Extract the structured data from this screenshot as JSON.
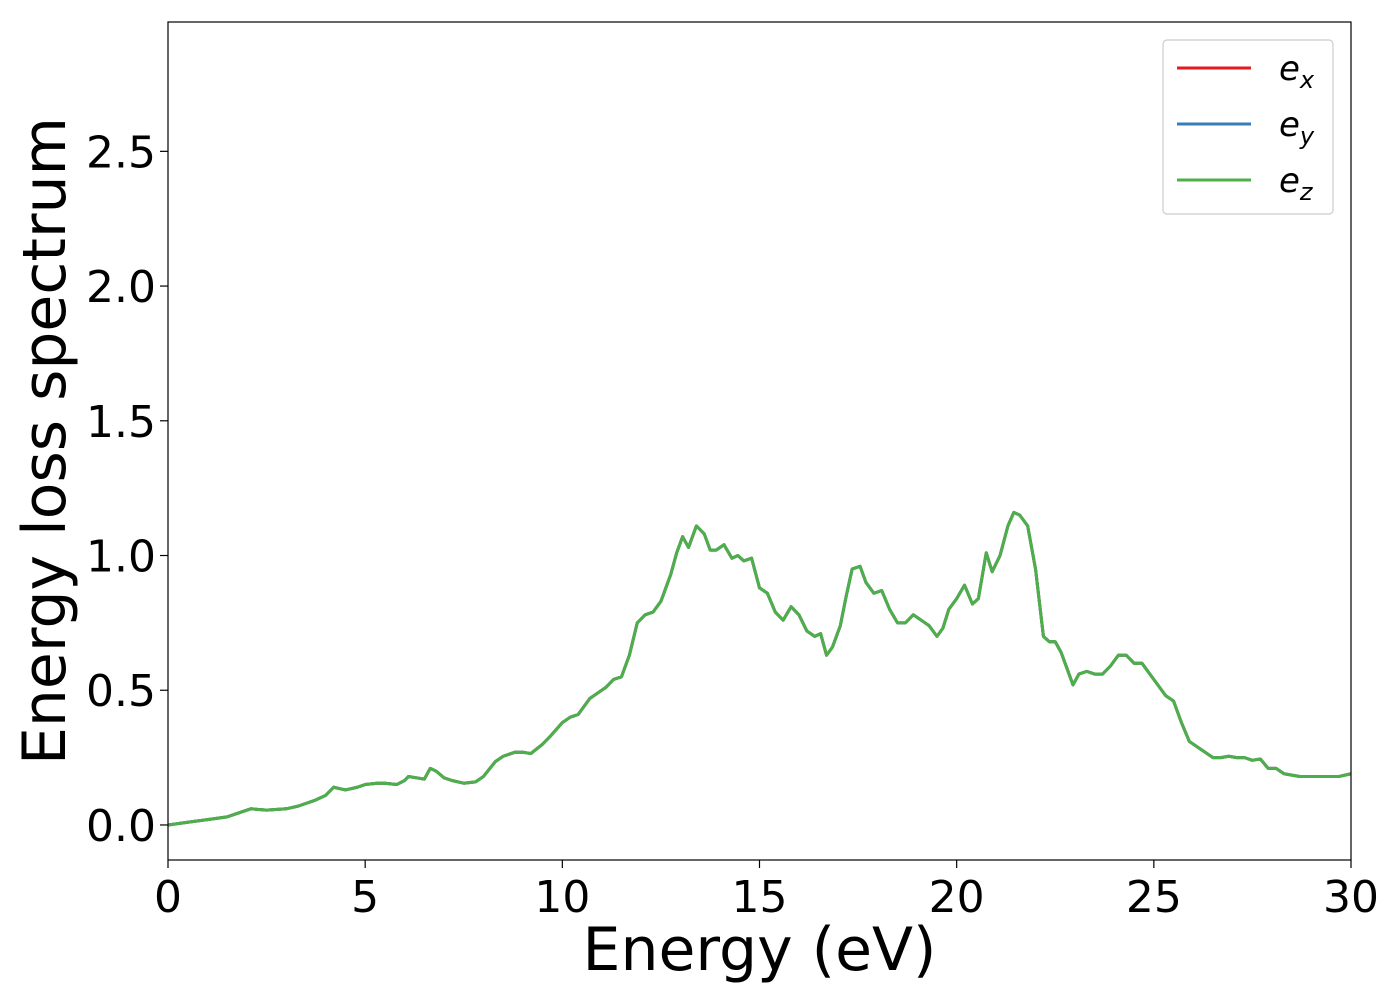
{
  "chart_data": {
    "type": "line",
    "title": "",
    "xlabel": "Energy (eV)",
    "ylabel": "Energy loss spectrum",
    "xlim": [
      0,
      30
    ],
    "ylim": [
      -0.13,
      2.98
    ],
    "xticks": [
      0,
      5,
      10,
      15,
      20,
      25,
      30
    ],
    "xtick_labels": [
      "0",
      "5",
      "10",
      "15",
      "20",
      "25",
      "30"
    ],
    "yticks": [
      0.0,
      0.5,
      1.0,
      1.5,
      2.0,
      2.5
    ],
    "ytick_labels": [
      "0.0",
      "0.5",
      "1.0",
      "1.5",
      "2.0",
      "2.5"
    ],
    "grid": false,
    "legend_position": "top-right",
    "legend": [
      {
        "base": "e",
        "sub": "x",
        "color": "#e41a1c"
      },
      {
        "base": "e",
        "sub": "y",
        "color": "#377eb8"
      },
      {
        "base": "e",
        "sub": "z",
        "color": "#4daf4a"
      }
    ],
    "x": [
      0,
      0.5,
      1.0,
      1.5,
      1.8,
      2.1,
      2.5,
      3.0,
      3.3,
      3.7,
      4.0,
      4.2,
      4.5,
      4.8,
      5.0,
      5.3,
      5.5,
      5.8,
      6.0,
      6.1,
      6.3,
      6.5,
      6.65,
      6.8,
      7.0,
      7.2,
      7.5,
      7.8,
      8.0,
      8.3,
      8.5,
      8.8,
      9.0,
      9.2,
      9.5,
      9.7,
      10.0,
      10.2,
      10.4,
      10.7,
      10.9,
      11.1,
      11.3,
      11.5,
      11.7,
      11.9,
      12.1,
      12.3,
      12.5,
      12.6,
      12.75,
      12.9,
      13.05,
      13.2,
      13.4,
      13.6,
      13.75,
      13.9,
      14.1,
      14.3,
      14.45,
      14.6,
      14.8,
      15.0,
      15.2,
      15.4,
      15.6,
      15.8,
      16.0,
      16.2,
      16.4,
      16.55,
      16.7,
      16.85,
      17.05,
      17.2,
      17.35,
      17.55,
      17.7,
      17.9,
      18.1,
      18.3,
      18.5,
      18.7,
      18.9,
      19.1,
      19.3,
      19.5,
      19.65,
      19.8,
      20.0,
      20.2,
      20.4,
      20.55,
      20.75,
      20.9,
      21.1,
      21.3,
      21.45,
      21.6,
      21.8,
      22.0,
      22.2,
      22.35,
      22.5,
      22.65,
      22.8,
      22.95,
      23.1,
      23.3,
      23.5,
      23.7,
      23.9,
      24.1,
      24.3,
      24.5,
      24.7,
      24.9,
      25.1,
      25.3,
      25.5,
      25.7,
      25.9,
      26.1,
      26.3,
      26.5,
      26.7,
      26.9,
      27.1,
      27.3,
      27.5,
      27.7,
      27.9,
      28.1,
      28.3,
      28.5,
      28.7,
      28.9,
      29.1,
      29.3,
      29.5,
      29.7,
      30.0
    ],
    "series": [
      {
        "name": "e_x",
        "color": "#e41a1c",
        "values": [
          0.0,
          0.01,
          0.02,
          0.03,
          0.045,
          0.06,
          0.055,
          0.06,
          0.07,
          0.09,
          0.11,
          0.14,
          0.13,
          0.14,
          0.15,
          0.155,
          0.155,
          0.15,
          0.165,
          0.18,
          0.175,
          0.17,
          0.21,
          0.2,
          0.175,
          0.165,
          0.155,
          0.16,
          0.18,
          0.235,
          0.255,
          0.27,
          0.27,
          0.265,
          0.3,
          0.33,
          0.38,
          0.4,
          0.41,
          0.47,
          0.49,
          0.51,
          0.54,
          0.55,
          0.63,
          0.75,
          0.78,
          0.79,
          0.83,
          0.87,
          0.93,
          1.01,
          1.07,
          1.03,
          1.11,
          1.08,
          1.02,
          1.02,
          1.04,
          0.99,
          1.0,
          0.98,
          0.99,
          0.88,
          0.86,
          0.79,
          0.76,
          0.81,
          0.78,
          0.72,
          0.7,
          0.71,
          0.63,
          0.66,
          0.74,
          0.85,
          0.95,
          0.96,
          0.9,
          0.86,
          0.87,
          0.8,
          0.75,
          0.75,
          0.78,
          0.76,
          0.74,
          0.7,
          0.73,
          0.8,
          0.84,
          0.89,
          0.82,
          0.84,
          1.01,
          0.94,
          1.0,
          1.11,
          1.16,
          1.15,
          1.11,
          0.95,
          0.7,
          0.68,
          0.68,
          0.64,
          0.58,
          0.52,
          0.56,
          0.57,
          0.56,
          0.56,
          0.59,
          0.63,
          0.63,
          0.6,
          0.6,
          0.56,
          0.52,
          0.48,
          0.46,
          0.38,
          0.31,
          0.29,
          0.27,
          0.25,
          0.25,
          0.255,
          0.25,
          0.25,
          0.24,
          0.245,
          0.21,
          0.21,
          0.19,
          0.185,
          0.18,
          0.18,
          0.18,
          0.18,
          0.18,
          0.18,
          0.19
        ]
      },
      {
        "name": "e_y",
        "color": "#377eb8",
        "values": [
          0.0,
          0.01,
          0.02,
          0.03,
          0.045,
          0.06,
          0.055,
          0.06,
          0.07,
          0.09,
          0.11,
          0.14,
          0.13,
          0.14,
          0.15,
          0.155,
          0.155,
          0.15,
          0.165,
          0.18,
          0.175,
          0.17,
          0.21,
          0.2,
          0.175,
          0.165,
          0.155,
          0.16,
          0.18,
          0.235,
          0.255,
          0.27,
          0.27,
          0.265,
          0.3,
          0.33,
          0.38,
          0.4,
          0.41,
          0.47,
          0.49,
          0.51,
          0.54,
          0.55,
          0.63,
          0.75,
          0.78,
          0.79,
          0.83,
          0.87,
          0.93,
          1.01,
          1.07,
          1.03,
          1.11,
          1.08,
          1.02,
          1.02,
          1.04,
          0.99,
          1.0,
          0.98,
          0.99,
          0.88,
          0.86,
          0.79,
          0.76,
          0.81,
          0.78,
          0.72,
          0.7,
          0.71,
          0.63,
          0.66,
          0.74,
          0.85,
          0.95,
          0.96,
          0.9,
          0.86,
          0.87,
          0.8,
          0.75,
          0.75,
          0.78,
          0.76,
          0.74,
          0.7,
          0.73,
          0.8,
          0.84,
          0.89,
          0.82,
          0.84,
          1.01,
          0.94,
          1.0,
          1.11,
          1.16,
          1.15,
          1.11,
          0.95,
          0.7,
          0.68,
          0.68,
          0.64,
          0.58,
          0.52,
          0.56,
          0.57,
          0.56,
          0.56,
          0.59,
          0.63,
          0.63,
          0.6,
          0.6,
          0.56,
          0.52,
          0.48,
          0.46,
          0.38,
          0.31,
          0.29,
          0.27,
          0.25,
          0.25,
          0.255,
          0.25,
          0.25,
          0.24,
          0.245,
          0.21,
          0.21,
          0.19,
          0.185,
          0.18,
          0.18,
          0.18,
          0.18,
          0.18,
          0.18,
          0.19
        ]
      },
      {
        "name": "e_z",
        "color": "#4daf4a",
        "values": [
          0.0,
          0.01,
          0.02,
          0.03,
          0.045,
          0.06,
          0.055,
          0.06,
          0.07,
          0.09,
          0.11,
          0.14,
          0.13,
          0.14,
          0.15,
          0.155,
          0.155,
          0.15,
          0.165,
          0.18,
          0.175,
          0.17,
          0.21,
          0.2,
          0.175,
          0.165,
          0.155,
          0.16,
          0.18,
          0.235,
          0.255,
          0.27,
          0.27,
          0.265,
          0.3,
          0.33,
          0.38,
          0.4,
          0.41,
          0.47,
          0.49,
          0.51,
          0.54,
          0.55,
          0.63,
          0.75,
          0.78,
          0.79,
          0.83,
          0.87,
          0.93,
          1.01,
          1.07,
          1.03,
          1.11,
          1.08,
          1.02,
          1.02,
          1.04,
          0.99,
          1.0,
          0.98,
          0.99,
          0.88,
          0.86,
          0.79,
          0.76,
          0.81,
          0.78,
          0.72,
          0.7,
          0.71,
          0.63,
          0.66,
          0.74,
          0.85,
          0.95,
          0.96,
          0.9,
          0.86,
          0.87,
          0.8,
          0.75,
          0.75,
          0.78,
          0.76,
          0.74,
          0.7,
          0.73,
          0.8,
          0.84,
          0.89,
          0.82,
          0.84,
          1.01,
          0.94,
          1.0,
          1.11,
          1.16,
          1.15,
          1.11,
          0.95,
          0.7,
          0.68,
          0.68,
          0.64,
          0.58,
          0.52,
          0.56,
          0.57,
          0.56,
          0.56,
          0.59,
          0.63,
          0.63,
          0.6,
          0.6,
          0.56,
          0.52,
          0.48,
          0.46,
          0.38,
          0.31,
          0.29,
          0.27,
          0.25,
          0.25,
          0.255,
          0.25,
          0.25,
          0.24,
          0.245,
          0.21,
          0.21,
          0.19,
          0.185,
          0.18,
          0.18,
          0.18,
          0.18,
          0.18,
          0.18,
          0.19
        ]
      }
    ]
  }
}
